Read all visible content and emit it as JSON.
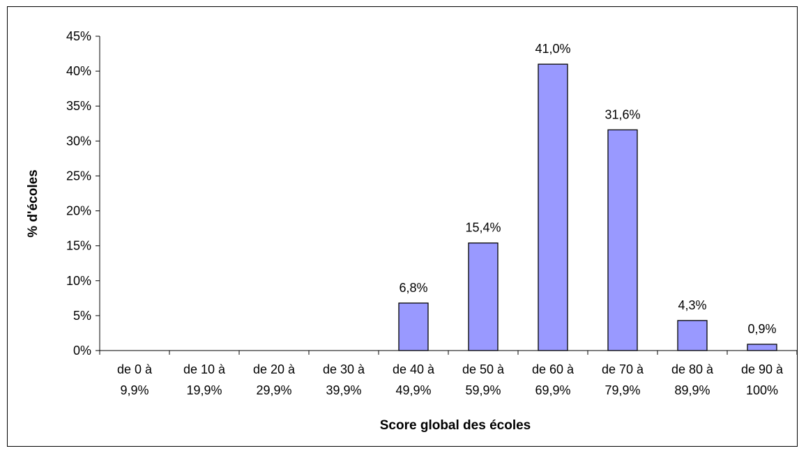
{
  "chart_data": {
    "type": "bar",
    "title": "",
    "xlabel": "Score global des écoles",
    "ylabel": "% d'écoles",
    "ylim": [
      0,
      45
    ],
    "yticks": [
      "0%",
      "5%",
      "10%",
      "15%",
      "20%",
      "25%",
      "30%",
      "35%",
      "40%",
      "45%"
    ],
    "categories": [
      [
        "de 0 à",
        "9,9%"
      ],
      [
        "de 10 à",
        "19,9%"
      ],
      [
        "de 20 à",
        "29,9%"
      ],
      [
        "de 30 à",
        "39,9%"
      ],
      [
        "de 40 à",
        "49,9%"
      ],
      [
        "de 50 à",
        "59,9%"
      ],
      [
        "de 60 à",
        "69,9%"
      ],
      [
        "de 70 à",
        "79,9%"
      ],
      [
        "de 80 à",
        "89,9%"
      ],
      [
        "de 90 à",
        "100%"
      ]
    ],
    "values": [
      0,
      0,
      0,
      0,
      6.8,
      15.4,
      41.0,
      31.6,
      4.3,
      0.9
    ],
    "data_labels": [
      "",
      "",
      "",
      "",
      "6,8%",
      "15,4%",
      "41,0%",
      "31,6%",
      "4,3%",
      "0,9%"
    ],
    "bar_color": "#9999ff",
    "grid": false,
    "legend": "none"
  }
}
